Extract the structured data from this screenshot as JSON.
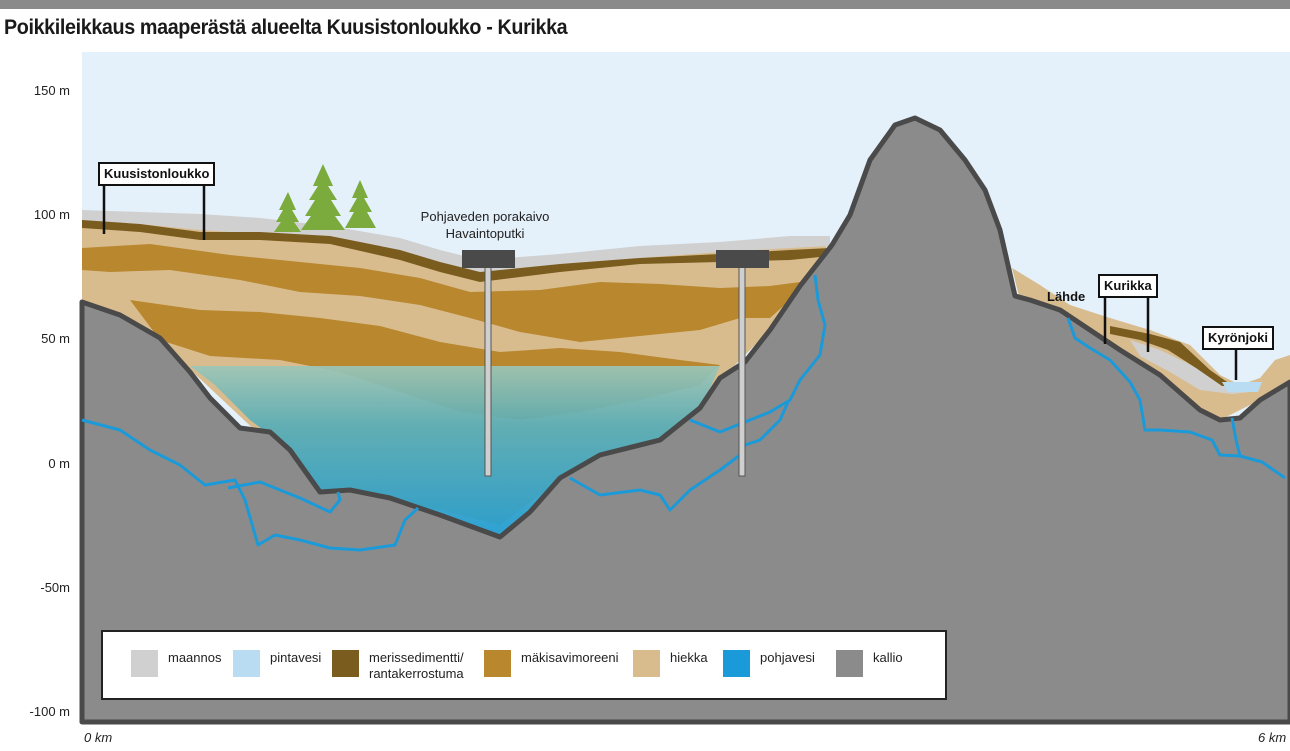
{
  "title": "Poikkileikkaus maaperästä alueelta Kuusistonloukko - Kurikka",
  "y_axis": {
    "ticks": [
      "150 m",
      "100 m",
      "50 m",
      "0 m",
      "-50m",
      "-100 m"
    ]
  },
  "x_axis": {
    "start": "0 km",
    "end": "6 km"
  },
  "labels": {
    "kuusistonloukko": "Kuusistonloukko",
    "well_line1": "Pohjaveden porakaivo",
    "well_line2": "Havaintoputki",
    "lahde": "Lähde",
    "kurikka": "Kurikka",
    "kyronjoki": "Kyrönjoki"
  },
  "legend": [
    {
      "label": "maannos",
      "color": "#d0d0d0"
    },
    {
      "label": "pintavesi",
      "color": "#b9dcf3"
    },
    {
      "label": "merissedimentti/\nrantakerrostuma",
      "color": "#7a5c1e"
    },
    {
      "label": "mäkisavimoreeni",
      "color": "#b8872e"
    },
    {
      "label": "hiekka",
      "color": "#d9bc8e"
    },
    {
      "label": "pohjavesi",
      "color": "#1a9ad8"
    },
    {
      "label": "kallio",
      "color": "#8c8b8c"
    }
  ],
  "colors": {
    "sky": "#e4f0fa",
    "bedrock": "#8c8b8c",
    "bedrock_outline": "#4a4a4a",
    "groundwater_line": "#1a9ad8"
  }
}
